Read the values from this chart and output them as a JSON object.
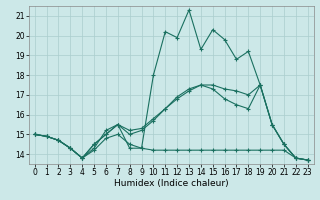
{
  "xlabel": "Humidex (Indice chaleur)",
  "bg_color": "#cce8e8",
  "grid_color": "#aacece",
  "line_color": "#1a7060",
  "xlim": [
    -0.5,
    23.5
  ],
  "ylim": [
    13.5,
    21.5
  ],
  "yticks": [
    14,
    15,
    16,
    17,
    18,
    19,
    20,
    21
  ],
  "xticks": [
    0,
    1,
    2,
    3,
    4,
    5,
    6,
    7,
    8,
    9,
    10,
    11,
    12,
    13,
    14,
    15,
    16,
    17,
    18,
    19,
    20,
    21,
    22,
    23
  ],
  "series": [
    [
      15.0,
      14.9,
      14.7,
      14.3,
      13.8,
      14.3,
      15.2,
      15.5,
      14.3,
      14.3,
      18.0,
      20.2,
      19.9,
      21.3,
      19.3,
      20.3,
      19.8,
      18.8,
      19.2,
      17.5,
      15.5,
      14.5,
      13.8,
      13.7
    ],
    [
      15.0,
      14.9,
      14.7,
      14.3,
      13.8,
      14.5,
      15.0,
      15.5,
      15.2,
      15.3,
      15.8,
      16.3,
      16.8,
      17.2,
      17.5,
      17.5,
      17.3,
      17.2,
      17.0,
      17.5,
      15.5,
      14.5,
      13.8,
      13.7
    ],
    [
      15.0,
      14.9,
      14.7,
      14.3,
      13.8,
      14.2,
      14.8,
      15.0,
      14.5,
      14.3,
      14.2,
      14.2,
      14.2,
      14.2,
      14.2,
      14.2,
      14.2,
      14.2,
      14.2,
      14.2,
      14.2,
      14.2,
      13.8,
      13.7
    ],
    [
      15.0,
      14.9,
      14.7,
      14.3,
      13.8,
      14.5,
      15.0,
      15.5,
      15.0,
      15.2,
      15.7,
      16.3,
      16.9,
      17.3,
      17.5,
      17.3,
      16.8,
      16.5,
      16.3,
      17.5,
      15.5,
      14.5,
      13.8,
      13.7
    ]
  ]
}
